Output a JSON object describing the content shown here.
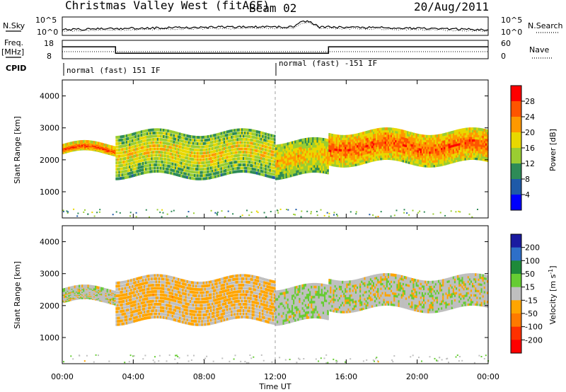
{
  "header": {
    "station": "Christmas Valley West (fitACF)",
    "beam": "Beam 02",
    "date": "20/Aug/2011"
  },
  "strips": {
    "nsky_label": "N.Sky",
    "nsky_ticks": [
      "10^5",
      "10^0"
    ],
    "nsearch_label": "N.Search",
    "nsearch_ticks": [
      "10^5",
      "10^0"
    ],
    "freq_label": "Freq.",
    "freq_unit": "[MHz]",
    "freq_ticks": [
      "18",
      "8"
    ],
    "nave_label": "Nave",
    "nave_ticks": [
      "60",
      "0"
    ],
    "cpid_label": "CPID",
    "cpid_segments": [
      "normal (fast) 151 IF",
      "normal (fast) -151 IF"
    ]
  },
  "axes": {
    "ylabel": "Slant Range [km]",
    "yticks": [
      "1000",
      "2000",
      "3000",
      "4000"
    ],
    "xticks": [
      "00:00",
      "04:00",
      "08:00",
      "12:00",
      "16:00",
      "20:00",
      "00:00"
    ],
    "xlabel": "Time UT"
  },
  "power_scale": {
    "label": "Power [dB]",
    "ticks": [
      "28",
      "24",
      "20",
      "16",
      "12",
      "8",
      "4"
    ],
    "colors": [
      "#ff0000",
      "#ff5500",
      "#ff9900",
      "#e8d800",
      "#9acd32",
      "#2e8b57",
      "#1e5aa8",
      "#0000ff"
    ]
  },
  "velocity_scale": {
    "label": "Velocity [m s",
    "label_sup": "-1",
    "label_end": "]",
    "ticks": [
      "200",
      "100",
      "50",
      "15",
      "-15",
      "-50",
      "-100",
      "-200"
    ],
    "colors": [
      "#1a1aa0",
      "#2e6fc8",
      "#1e8a3a",
      "#66cc33",
      "#bfbfbf",
      "#ffa500",
      "#ff7a00",
      "#ff3000",
      "#ff0000"
    ]
  },
  "chart_data": {
    "type": "heatmap",
    "title": "Christmas Valley West (fitACF) Beam 02 20/Aug/2011",
    "xlabel": "Time UT",
    "ylabel": "Slant Range [km]",
    "x_range": [
      "00:00",
      "24:00"
    ],
    "ylim": [
      180,
      4500
    ],
    "panels": [
      {
        "name": "Power [dB]",
        "zlim": [
          0,
          30
        ],
        "echo_bands": [
          {
            "t_start": 0.0,
            "t_end": 3.0,
            "range_km": [
              2200,
              2450
            ],
            "value": 28
          },
          {
            "t_start": 3.0,
            "t_end": 12.0,
            "range_km": [
              1500,
              2900
            ],
            "value": 18
          },
          {
            "t_start": 12.0,
            "t_end": 15.0,
            "range_km": [
              1500,
              2600
            ],
            "value": 20
          },
          {
            "t_start": 15.0,
            "t_end": 24.0,
            "range_km": [
              1900,
              2900
            ],
            "value": 26
          }
        ]
      },
      {
        "name": "Velocity [m s-1]",
        "zlim": [
          -200,
          200
        ],
        "echo_bands": [
          {
            "t_start": 0.0,
            "t_end": 3.0,
            "range_km": [
              2100,
              2500
            ],
            "value": 0
          },
          {
            "t_start": 3.0,
            "t_end": 12.0,
            "range_km": [
              1500,
              2900
            ],
            "value": -40
          },
          {
            "t_start": 12.0,
            "t_end": 15.0,
            "range_km": [
              1500,
              2600
            ],
            "value": 10
          },
          {
            "t_start": 15.0,
            "t_end": 24.0,
            "range_km": [
              1900,
              2900
            ],
            "value": 0
          }
        ]
      }
    ],
    "frequency_MHz": [
      {
        "t_start": 0,
        "t_end": 3,
        "value": 14.5
      },
      {
        "t_start": 3,
        "t_end": 15,
        "value": 11.0
      },
      {
        "t_start": 15,
        "t_end": 24,
        "value": 14.5
      }
    ],
    "cpid": [
      {
        "t_start": 0,
        "t_end": 12,
        "value": "normal (fast) 151 IF"
      },
      {
        "t_start": 12,
        "t_end": 24,
        "value": "normal (fast) -151 IF"
      }
    ]
  }
}
